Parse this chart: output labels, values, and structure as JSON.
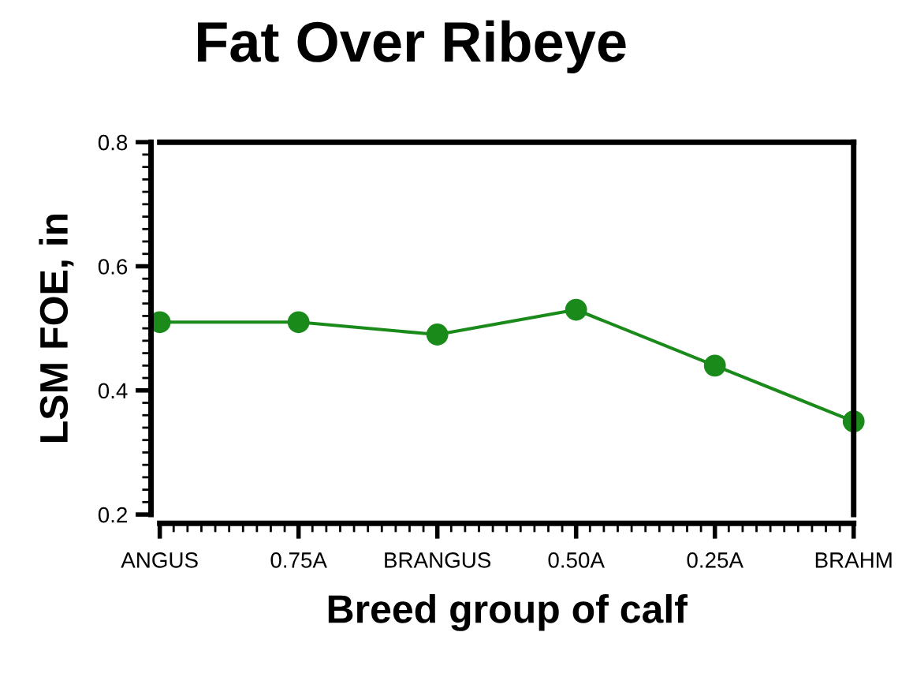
{
  "chart_data": {
    "type": "line",
    "title": "Fat Over Ribeye",
    "xlabel": "Breed group of calf",
    "ylabel": "LSM FOE, in",
    "categories": [
      "ANGUS",
      "0.75A",
      "BRANGUS",
      "0.50A",
      "0.25A",
      "BRAHM"
    ],
    "series": [
      {
        "color": "#1a8a1a",
        "values": [
          0.51,
          0.51,
          0.49,
          0.53,
          0.44,
          0.35
        ]
      }
    ],
    "ylim": [
      0.2,
      0.8
    ],
    "yticks": [
      0.2,
      0.4,
      0.6,
      0.8
    ],
    "marker": "circle",
    "line_style": "solid",
    "grid": false,
    "legend": false
  }
}
